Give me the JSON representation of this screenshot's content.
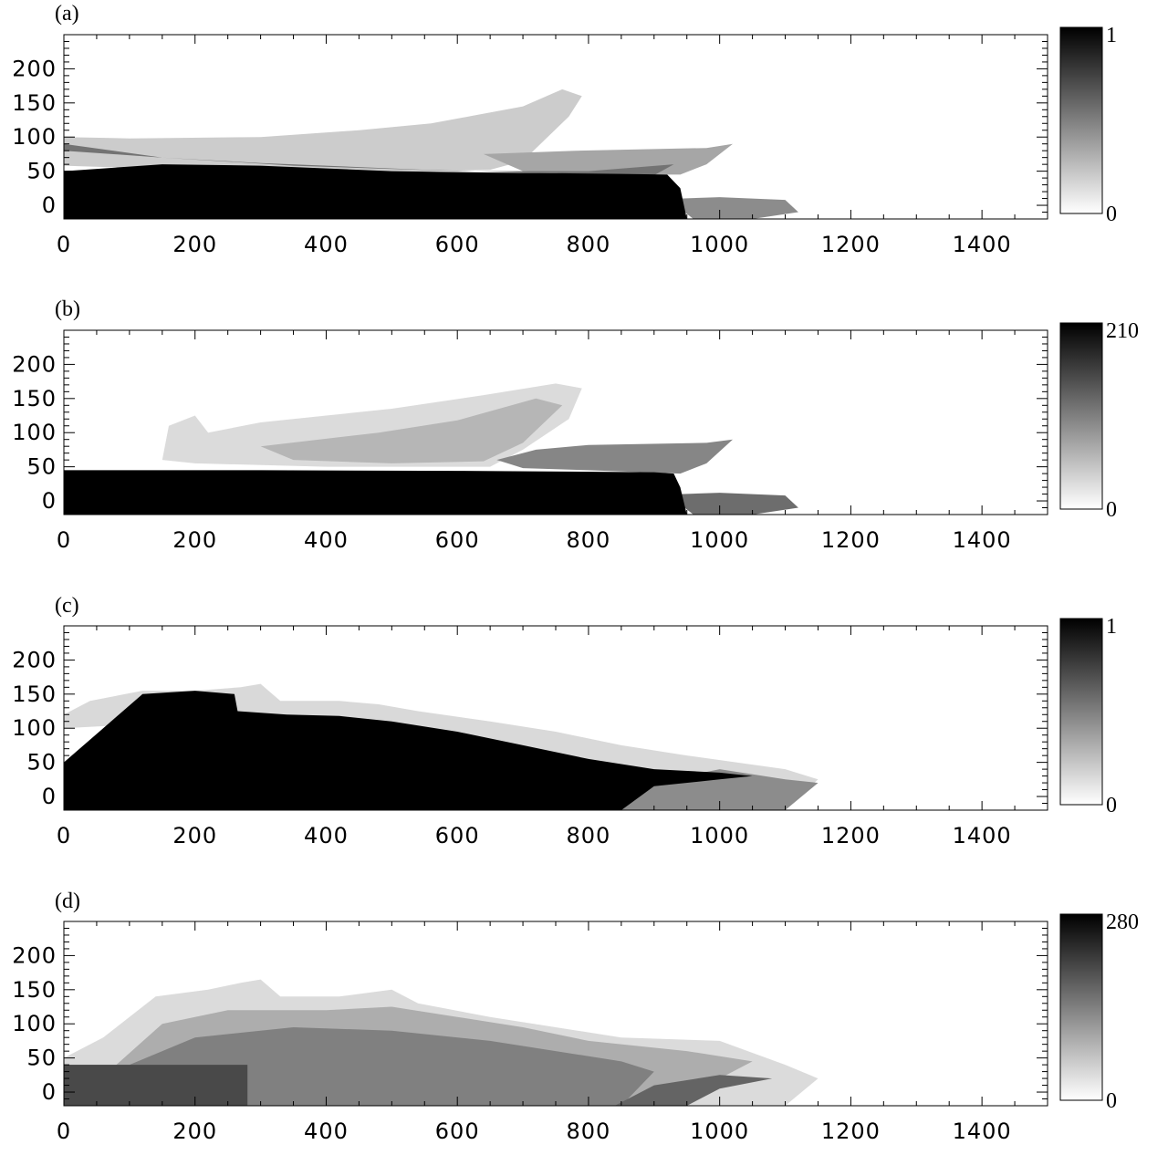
{
  "chart_data": [
    {
      "type": "heatmap",
      "panel_label": "(a)",
      "xlim": [
        0,
        1500
      ],
      "ylim": [
        -20,
        250
      ],
      "x_ticks": [
        "0",
        "200",
        "400",
        "600",
        "800",
        "1000",
        "1200",
        "1400"
      ],
      "y_ticks": [
        "0",
        "50",
        "100",
        "150",
        "200"
      ],
      "colorbar": {
        "min_label": "0",
        "max_label": "1",
        "min": 0,
        "max": 1
      },
      "colormap": [
        "#ffffff",
        "#000000"
      ],
      "regions": [
        {
          "level": 0.2,
          "points": [
            [
              0,
              100
            ],
            [
              100,
              98
            ],
            [
              300,
              100
            ],
            [
              450,
              110
            ],
            [
              560,
              120
            ],
            [
              700,
              145
            ],
            [
              760,
              170
            ],
            [
              790,
              160
            ],
            [
              770,
              130
            ],
            [
              700,
              65
            ],
            [
              650,
              52
            ],
            [
              500,
              48
            ],
            [
              300,
              52
            ],
            [
              100,
              55
            ],
            [
              0,
              58
            ]
          ]
        },
        {
          "level": 0.35,
          "points": [
            [
              640,
              75
            ],
            [
              780,
              80
            ],
            [
              980,
              84
            ],
            [
              1020,
              90
            ],
            [
              980,
              60
            ],
            [
              940,
              45
            ],
            [
              800,
              45
            ],
            [
              700,
              50
            ]
          ]
        },
        {
          "level": 0.55,
          "points": [
            [
              0,
              80
            ],
            [
              150,
              70
            ],
            [
              300,
              62
            ],
            [
              550,
              52
            ],
            [
              700,
              48
            ],
            [
              900,
              44
            ],
            [
              930,
              60
            ],
            [
              800,
              50
            ],
            [
              600,
              50
            ],
            [
              350,
              58
            ],
            [
              150,
              70
            ],
            [
              0,
              90
            ]
          ]
        },
        {
          "level": 0.45,
          "points": [
            [
              940,
              10
            ],
            [
              1000,
              12
            ],
            [
              1100,
              8
            ],
            [
              1120,
              -10
            ],
            [
              1050,
              -20
            ],
            [
              960,
              -20
            ],
            [
              940,
              -5
            ]
          ]
        },
        {
          "level": 1.0,
          "points": [
            [
              0,
              -20
            ],
            [
              0,
              50
            ],
            [
              150,
              60
            ],
            [
              300,
              58
            ],
            [
              500,
              50
            ],
            [
              650,
              48
            ],
            [
              850,
              46
            ],
            [
              920,
              45
            ],
            [
              940,
              25
            ],
            [
              950,
              -20
            ]
          ]
        }
      ]
    },
    {
      "type": "heatmap",
      "panel_label": "(b)",
      "xlim": [
        0,
        1500
      ],
      "ylim": [
        -20,
        250
      ],
      "x_ticks": [
        "0",
        "200",
        "400",
        "600",
        "800",
        "1000",
        "1200",
        "1400"
      ],
      "y_ticks": [
        "0",
        "50",
        "100",
        "150",
        "200"
      ],
      "colorbar": {
        "min_label": "0",
        "max_label": "210",
        "min": 0,
        "max": 210
      },
      "colormap": [
        "#ffffff",
        "#000000"
      ],
      "regions": [
        {
          "level": 30,
          "points": [
            [
              150,
              60
            ],
            [
              160,
              110
            ],
            [
              200,
              125
            ],
            [
              220,
              100
            ],
            [
              300,
              115
            ],
            [
              400,
              125
            ],
            [
              500,
              135
            ],
            [
              640,
              155
            ],
            [
              750,
              172
            ],
            [
              790,
              165
            ],
            [
              770,
              120
            ],
            [
              700,
              75
            ],
            [
              650,
              50
            ],
            [
              400,
              50
            ],
            [
              200,
              55
            ]
          ]
        },
        {
          "level": 60,
          "points": [
            [
              300,
              80
            ],
            [
              480,
              100
            ],
            [
              600,
              118
            ],
            [
              720,
              150
            ],
            [
              760,
              140
            ],
            [
              700,
              85
            ],
            [
              640,
              58
            ],
            [
              500,
              55
            ],
            [
              350,
              60
            ]
          ]
        },
        {
          "level": 100,
          "points": [
            [
              660,
              60
            ],
            [
              720,
              75
            ],
            [
              800,
              82
            ],
            [
              980,
              85
            ],
            [
              1020,
              90
            ],
            [
              980,
              55
            ],
            [
              940,
              40
            ],
            [
              800,
              45
            ],
            [
              700,
              48
            ]
          ]
        },
        {
          "level": 120,
          "points": [
            [
              940,
              10
            ],
            [
              1000,
              12
            ],
            [
              1100,
              8
            ],
            [
              1120,
              -10
            ],
            [
              1050,
              -20
            ],
            [
              960,
              -20
            ],
            [
              940,
              -5
            ]
          ]
        },
        {
          "level": 210,
          "points": [
            [
              0,
              -20
            ],
            [
              0,
              45
            ],
            [
              300,
              45
            ],
            [
              600,
              44
            ],
            [
              900,
              42
            ],
            [
              930,
              40
            ],
            [
              940,
              20
            ],
            [
              950,
              -20
            ]
          ]
        }
      ]
    },
    {
      "type": "heatmap",
      "panel_label": "(c)",
      "xlim": [
        0,
        1500
      ],
      "ylim": [
        -20,
        250
      ],
      "x_ticks": [
        "0",
        "200",
        "400",
        "600",
        "800",
        "1000",
        "1200",
        "1400"
      ],
      "y_ticks": [
        "0",
        "50",
        "100",
        "150",
        "200"
      ],
      "colorbar": {
        "min_label": "0",
        "max_label": "1",
        "min": 0,
        "max": 1
      },
      "colormap": [
        "#ffffff",
        "#000000"
      ],
      "regions": [
        {
          "level": 0.15,
          "points": [
            [
              0,
              120
            ],
            [
              40,
              140
            ],
            [
              120,
              155
            ],
            [
              200,
              155
            ],
            [
              270,
              160
            ],
            [
              300,
              165
            ],
            [
              330,
              140
            ],
            [
              420,
              140
            ],
            [
              480,
              135
            ],
            [
              540,
              125
            ],
            [
              650,
              110
            ],
            [
              750,
              95
            ],
            [
              850,
              75
            ],
            [
              950,
              60
            ],
            [
              1100,
              40
            ],
            [
              1150,
              25
            ],
            [
              1100,
              -20
            ],
            [
              800,
              -20
            ],
            [
              700,
              20
            ],
            [
              600,
              60
            ],
            [
              400,
              100
            ],
            [
              200,
              110
            ],
            [
              0,
              100
            ]
          ]
        },
        {
          "level": 0.45,
          "points": [
            [
              830,
              -20
            ],
            [
              900,
              20
            ],
            [
              1000,
              40
            ],
            [
              1100,
              25
            ],
            [
              1150,
              20
            ],
            [
              1100,
              -20
            ]
          ]
        },
        {
          "level": 1.0,
          "points": [
            [
              0,
              -20
            ],
            [
              0,
              50
            ],
            [
              60,
              100
            ],
            [
              120,
              150
            ],
            [
              200,
              155
            ],
            [
              260,
              150
            ],
            [
              265,
              125
            ],
            [
              340,
              120
            ],
            [
              420,
              118
            ],
            [
              500,
              110
            ],
            [
              600,
              95
            ],
            [
              700,
              75
            ],
            [
              800,
              55
            ],
            [
              900,
              40
            ],
            [
              1000,
              35
            ],
            [
              1050,
              30
            ],
            [
              1000,
              25
            ],
            [
              900,
              15
            ],
            [
              850,
              -20
            ]
          ]
        }
      ]
    },
    {
      "type": "heatmap",
      "panel_label": "(d)",
      "xlim": [
        0,
        1500
      ],
      "ylim": [
        -20,
        250
      ],
      "x_ticks": [
        "0",
        "200",
        "400",
        "600",
        "800",
        "1000",
        "1200",
        "1400"
      ],
      "y_ticks": [
        "0",
        "50",
        "100",
        "150",
        "200"
      ],
      "colorbar": {
        "min_label": "0",
        "max_label": "280",
        "min": 0,
        "max": 280
      },
      "colormap": [
        "#ffffff",
        "#000000"
      ],
      "regions": [
        {
          "level": 40,
          "points": [
            [
              0,
              50
            ],
            [
              60,
              80
            ],
            [
              140,
              140
            ],
            [
              220,
              150
            ],
            [
              270,
              160
            ],
            [
              300,
              165
            ],
            [
              330,
              140
            ],
            [
              420,
              140
            ],
            [
              500,
              150
            ],
            [
              540,
              130
            ],
            [
              650,
              110
            ],
            [
              750,
              95
            ],
            [
              850,
              80
            ],
            [
              1000,
              75
            ],
            [
              1100,
              40
            ],
            [
              1150,
              20
            ],
            [
              1100,
              -20
            ],
            [
              0,
              -20
            ]
          ]
        },
        {
          "level": 90,
          "points": [
            [
              80,
              40
            ],
            [
              150,
              100
            ],
            [
              250,
              120
            ],
            [
              400,
              120
            ],
            [
              500,
              125
            ],
            [
              600,
              110
            ],
            [
              700,
              95
            ],
            [
              800,
              75
            ],
            [
              950,
              60
            ],
            [
              1050,
              45
            ],
            [
              1000,
              20
            ],
            [
              850,
              -20
            ],
            [
              0,
              -20
            ],
            [
              0,
              40
            ]
          ]
        },
        {
          "level": 140,
          "points": [
            [
              100,
              40
            ],
            [
              200,
              80
            ],
            [
              350,
              95
            ],
            [
              500,
              90
            ],
            [
              650,
              75
            ],
            [
              750,
              60
            ],
            [
              850,
              45
            ],
            [
              900,
              30
            ],
            [
              850,
              -20
            ],
            [
              0,
              -20
            ],
            [
              0,
              40
            ]
          ]
        },
        {
          "level": 170,
          "points": [
            [
              840,
              -20
            ],
            [
              900,
              10
            ],
            [
              1000,
              25
            ],
            [
              1080,
              20
            ],
            [
              1000,
              5
            ],
            [
              950,
              -20
            ]
          ]
        },
        {
          "level": 200,
          "points": [
            [
              0,
              -20
            ],
            [
              0,
              40
            ],
            [
              280,
              40
            ],
            [
              280,
              -20
            ]
          ]
        }
      ]
    }
  ]
}
